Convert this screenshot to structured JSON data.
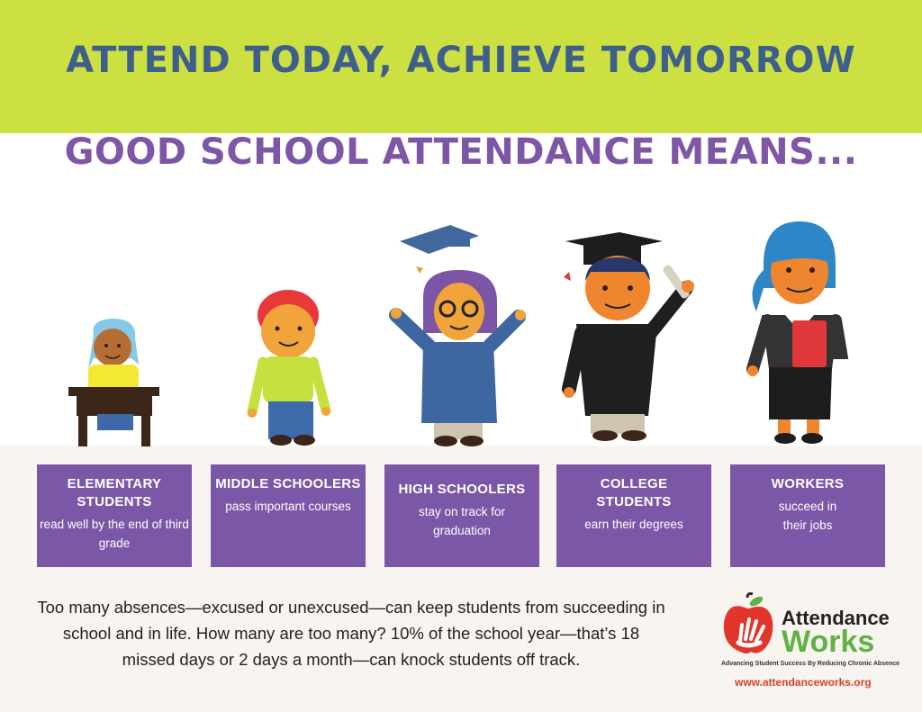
{
  "banner": {
    "title": "ATTEND TODAY, ACHIEVE TOMORROW"
  },
  "subtitle": "GOOD SCHOOL ATTENDANCE MEANS...",
  "cards": [
    {
      "title": "ELEMENTARY STUDENTS",
      "desc": "read well by the end of third grade"
    },
    {
      "title": "MIDDLE SCHOOLERS",
      "desc": "pass important courses"
    },
    {
      "title": "HIGH SCHOOLERS",
      "desc": "stay on track for graduation"
    },
    {
      "title": "COLLEGE STUDENTS",
      "desc": "earn their degrees"
    },
    {
      "title": "WORKERS",
      "desc": "succeed in their jobs"
    }
  ],
  "note": "Too many absences—excused or unexcused—can keep students from succeeding in school and in life. How many are too many? 10% of the school year—that’s 18 missed days or 2 days a month—can knock students off track.",
  "logo": {
    "word1": "Attendance",
    "word2": "Works",
    "tagline": "Advancing Student Success By Reducing Chronic Absence",
    "url": "www.attendanceworks.org"
  },
  "colors": {
    "banner": "#cde041",
    "title": "#3e5f8c",
    "purple": "#7b57a7",
    "green": "#5eb246",
    "red": "#d8402b"
  }
}
